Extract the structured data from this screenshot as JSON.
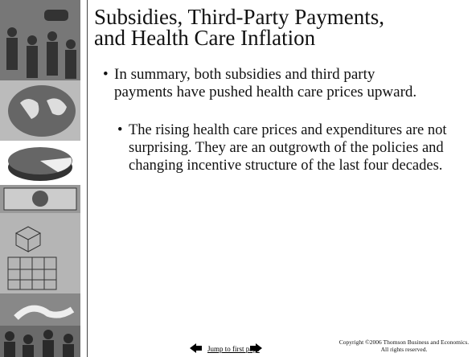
{
  "slide": {
    "title_lines": [
      "Subsidies, Third-Party Payments,",
      "and Health Care Inflation"
    ],
    "bullets": [
      {
        "text": "In summary, both subsidies and third party payments have pushed health care prices upward.",
        "level": 1
      },
      {
        "text": "The rising health care prices and expenditures are not surprising. They are an outgrowth of the policies and changing incentive structure of the last four decades.",
        "level": 2
      }
    ],
    "footer": {
      "link": "Jump to first page",
      "copyright": "Copyright ©2006  Thomson Business and Economics. All rights reserved."
    }
  }
}
